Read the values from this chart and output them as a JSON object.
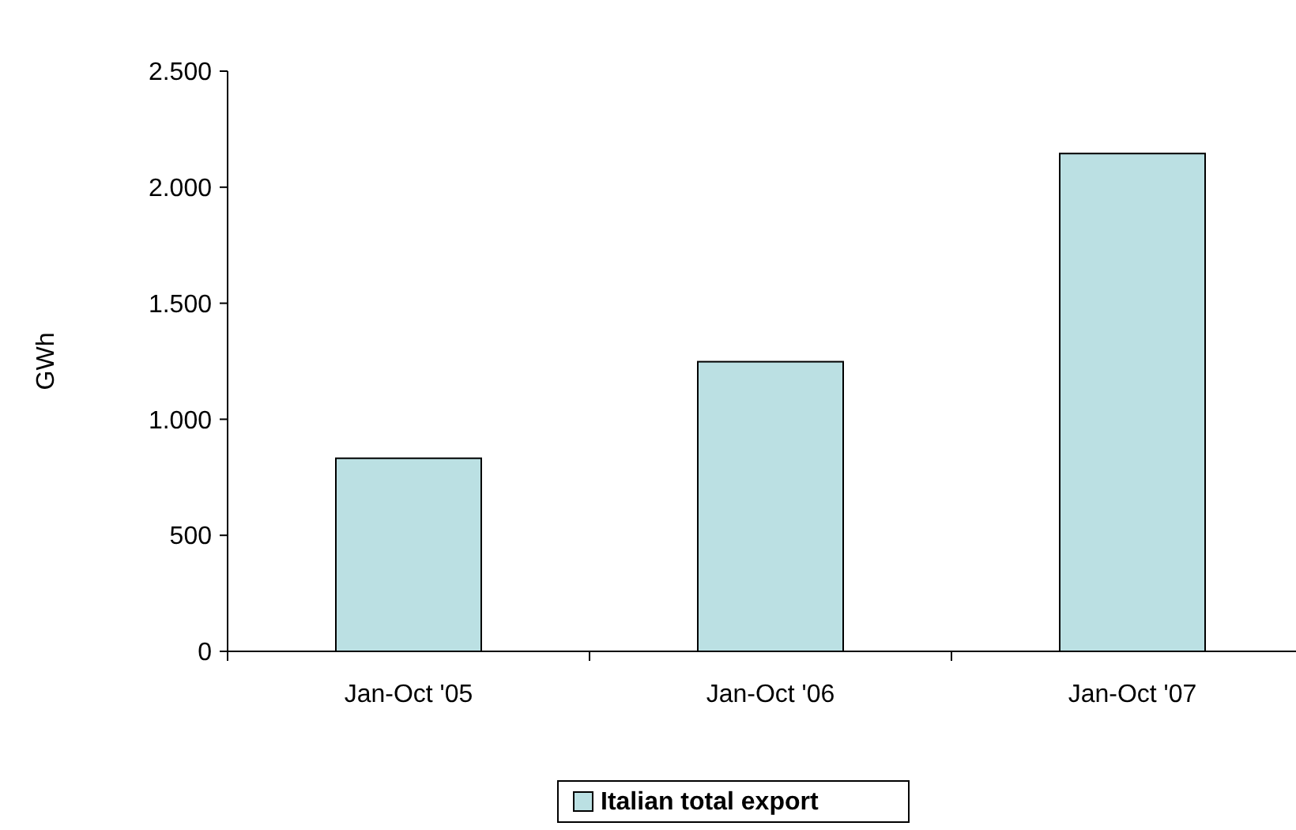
{
  "chart_data": {
    "type": "bar",
    "ylabel": "GWh",
    "categories": [
      "Jan-Oct '05",
      "Jan-Oct '06",
      "Jan-Oct '07"
    ],
    "series": [
      {
        "name": "Italian total export",
        "color": "#bbe0e3",
        "values": [
          832,
          1248,
          2145
        ]
      }
    ],
    "ylim": [
      0,
      2500
    ],
    "yticks": [
      {
        "value": 0,
        "label": "0"
      },
      {
        "value": 500,
        "label": "500"
      },
      {
        "value": 1000,
        "label": "1.000"
      },
      {
        "value": 1500,
        "label": "1.500"
      },
      {
        "value": 2000,
        "label": "2.000"
      },
      {
        "value": 2500,
        "label": "2.500"
      }
    ],
    "grid": false,
    "legend": "bottom"
  }
}
